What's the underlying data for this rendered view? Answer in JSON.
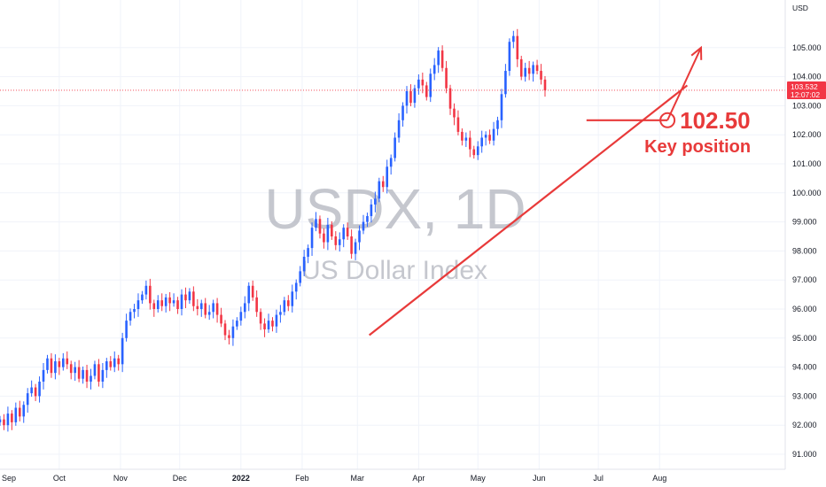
{
  "chart_data": {
    "type": "candlestick",
    "watermark_symbol": "USDX, 1D",
    "watermark_name": "US Dollar Index",
    "currency": "USD",
    "y_ticks": [
      "91.000",
      "92.000",
      "93.000",
      "94.000",
      "95.000",
      "96.000",
      "97.000",
      "98.000",
      "99.000",
      "100.000",
      "101.000",
      "102.000",
      "103.000",
      "104.000",
      "105.000"
    ],
    "y_values": [
      91,
      92,
      93,
      94,
      95,
      96,
      97,
      98,
      99,
      100,
      101,
      102,
      103,
      104,
      105
    ],
    "ylim": [
      90.5,
      105.5
    ],
    "x_labels": [
      {
        "text": "Sep",
        "day": -4,
        "bold": false
      },
      {
        "text": "Oct",
        "day": 30,
        "bold": false
      },
      {
        "text": "Nov",
        "day": 61,
        "bold": false
      },
      {
        "text": "Dec",
        "day": 91,
        "bold": false
      },
      {
        "text": "2022",
        "day": 122,
        "bold": true
      },
      {
        "text": "Feb",
        "day": 153,
        "bold": false
      },
      {
        "text": "Mar",
        "day": 181,
        "bold": false
      },
      {
        "text": "Apr",
        "day": 212,
        "bold": false
      },
      {
        "text": "May",
        "day": 242,
        "bold": false
      },
      {
        "text": "Jun",
        "day": 273,
        "bold": false
      },
      {
        "text": "Jul",
        "day": 303,
        "bold": false
      },
      {
        "text": "Aug",
        "day": 334,
        "bold": false
      }
    ],
    "xlim": [
      0,
      355
    ],
    "last_price": "103.532",
    "last_price_value": 103.532,
    "countdown": "12:07:02",
    "colors": {
      "up": "#2962ff",
      "down": "#f23645",
      "annotation": "#e83a3a",
      "price_box": "#f23645"
    },
    "closes": [
      [
        0,
        92.2
      ],
      [
        2,
        92.0
      ],
      [
        4,
        92.4
      ],
      [
        6,
        92.1
      ],
      [
        8,
        92.6
      ],
      [
        10,
        92.3
      ],
      [
        12,
        92.7
      ],
      [
        14,
        93.1
      ],
      [
        16,
        93.3
      ],
      [
        18,
        93.0
      ],
      [
        20,
        93.5
      ],
      [
        22,
        93.9
      ],
      [
        24,
        94.3
      ],
      [
        26,
        93.8
      ],
      [
        28,
        94.2
      ],
      [
        30,
        94.0
      ],
      [
        32,
        94.3
      ],
      [
        34,
        94.1
      ],
      [
        36,
        93.8
      ],
      [
        38,
        94.0
      ],
      [
        40,
        93.6
      ],
      [
        42,
        93.9
      ],
      [
        44,
        93.5
      ],
      [
        46,
        93.7
      ],
      [
        48,
        94.1
      ],
      [
        50,
        93.5
      ],
      [
        52,
        93.9
      ],
      [
        54,
        94.2
      ],
      [
        56,
        94.0
      ],
      [
        58,
        94.3
      ],
      [
        60,
        94.1
      ],
      [
        62,
        95.0
      ],
      [
        64,
        95.6
      ],
      [
        66,
        95.9
      ],
      [
        68,
        96.0
      ],
      [
        70,
        96.3
      ],
      [
        72,
        96.5
      ],
      [
        74,
        96.8
      ],
      [
        76,
        96.2
      ],
      [
        78,
        96.0
      ],
      [
        80,
        96.3
      ],
      [
        82,
        96.1
      ],
      [
        84,
        96.4
      ],
      [
        86,
        96.2
      ],
      [
        88,
        96.3
      ],
      [
        90,
        96.0
      ],
      [
        92,
        96.5
      ],
      [
        94,
        96.3
      ],
      [
        96,
        96.6
      ],
      [
        98,
        96.1
      ],
      [
        100,
        96.0
      ],
      [
        102,
        96.2
      ],
      [
        104,
        95.8
      ],
      [
        106,
        95.9
      ],
      [
        108,
        96.2
      ],
      [
        110,
        95.8
      ],
      [
        112,
        95.5
      ],
      [
        114,
        95.1
      ],
      [
        116,
        95.0
      ],
      [
        118,
        95.4
      ],
      [
        120,
        95.6
      ],
      [
        122,
        95.9
      ],
      [
        124,
        96.2
      ],
      [
        126,
        96.8
      ],
      [
        128,
        96.4
      ],
      [
        130,
        95.9
      ],
      [
        132,
        95.5
      ],
      [
        134,
        95.3
      ],
      [
        136,
        95.6
      ],
      [
        138,
        95.4
      ],
      [
        140,
        95.8
      ],
      [
        142,
        95.9
      ],
      [
        144,
        96.3
      ],
      [
        146,
        96.1
      ],
      [
        148,
        96.6
      ],
      [
        150,
        96.9
      ],
      [
        152,
        97.3
      ],
      [
        154,
        97.8
      ],
      [
        156,
        98.1
      ],
      [
        158,
        98.8
      ],
      [
        160,
        99.1
      ],
      [
        162,
        98.6
      ],
      [
        164,
        98.3
      ],
      [
        166,
        98.9
      ],
      [
        168,
        98.5
      ],
      [
        170,
        98.2
      ],
      [
        172,
        98.4
      ],
      [
        174,
        98.8
      ],
      [
        176,
        98.5
      ],
      [
        178,
        97.9
      ],
      [
        180,
        98.3
      ],
      [
        182,
        98.7
      ],
      [
        184,
        99.0
      ],
      [
        186,
        99.2
      ],
      [
        188,
        99.6
      ],
      [
        190,
        99.8
      ],
      [
        192,
        100.4
      ],
      [
        194,
        100.2
      ],
      [
        196,
        100.9
      ],
      [
        198,
        101.2
      ],
      [
        200,
        101.9
      ],
      [
        202,
        102.5
      ],
      [
        204,
        103.0
      ],
      [
        206,
        103.5
      ],
      [
        208,
        103.1
      ],
      [
        210,
        103.6
      ],
      [
        212,
        103.9
      ],
      [
        214,
        103.7
      ],
      [
        216,
        103.3
      ],
      [
        218,
        104.1
      ],
      [
        220,
        104.4
      ],
      [
        222,
        104.9
      ],
      [
        224,
        104.3
      ],
      [
        226,
        103.6
      ],
      [
        228,
        102.9
      ],
      [
        230,
        102.6
      ],
      [
        232,
        102.1
      ],
      [
        234,
        101.8
      ],
      [
        236,
        101.9
      ],
      [
        238,
        101.5
      ],
      [
        240,
        101.3
      ],
      [
        242,
        101.6
      ],
      [
        244,
        101.9
      ],
      [
        246,
        102.0
      ],
      [
        248,
        101.8
      ],
      [
        250,
        102.2
      ],
      [
        252,
        102.5
      ],
      [
        254,
        103.4
      ],
      [
        256,
        104.2
      ],
      [
        258,
        105.2
      ],
      [
        260,
        105.4
      ],
      [
        262,
        104.6
      ],
      [
        264,
        104.0
      ],
      [
        266,
        104.3
      ],
      [
        268,
        104.1
      ],
      [
        270,
        104.4
      ],
      [
        272,
        104.2
      ],
      [
        274,
        103.9
      ],
      [
        276,
        103.532
      ]
    ],
    "drawings": {
      "trendline": {
        "from": [
          187,
          95.1
        ],
        "to": [
          348,
          103.7
        ]
      },
      "support_level": {
        "value": 102.5,
        "from": 297,
        "to": 338
      },
      "circle_at": [
        338,
        102.5
      ],
      "arrow": {
        "from": [
          338,
          102.5
        ],
        "to": [
          355,
          105.0
        ]
      }
    },
    "annotations": {
      "level_text": "102.50",
      "label_text": "Key position"
    }
  }
}
